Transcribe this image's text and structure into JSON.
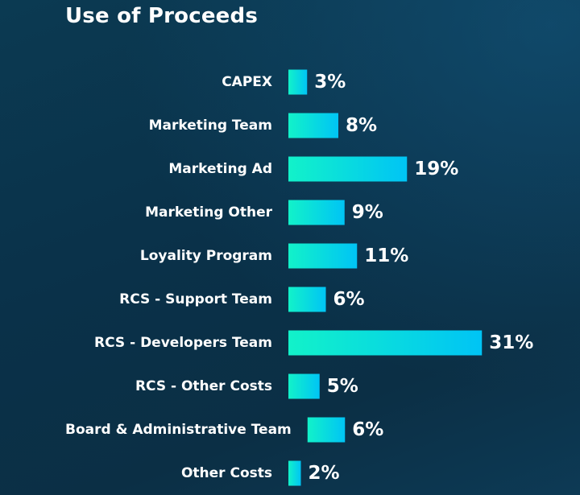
{
  "title": "Use of Proceeds",
  "colors": {
    "bar_start": "#12f2c9",
    "bar_end": "#00c4f5",
    "background": "#0a3149",
    "text": "#ffffff"
  },
  "chart_data": {
    "type": "bar",
    "orientation": "horizontal",
    "title": "Use of Proceeds",
    "xlabel": "",
    "ylabel": "",
    "unit": "%",
    "categories": [
      "CAPEX",
      "Marketing Team",
      "Marketing Ad",
      "Marketing Other",
      "Loyality Program",
      "RCS - Support Team",
      "RCS - Developers Team",
      "RCS - Other Costs",
      "Board & Administrative Team",
      "Other Costs"
    ],
    "values": [
      3,
      8,
      19,
      9,
      11,
      6,
      31,
      5,
      6,
      2
    ],
    "value_labels": [
      "3%",
      "8%",
      "19%",
      "9%",
      "11%",
      "6%",
      "31%",
      "5%",
      "6%",
      "2%"
    ],
    "grid": false,
    "legend": "none"
  }
}
